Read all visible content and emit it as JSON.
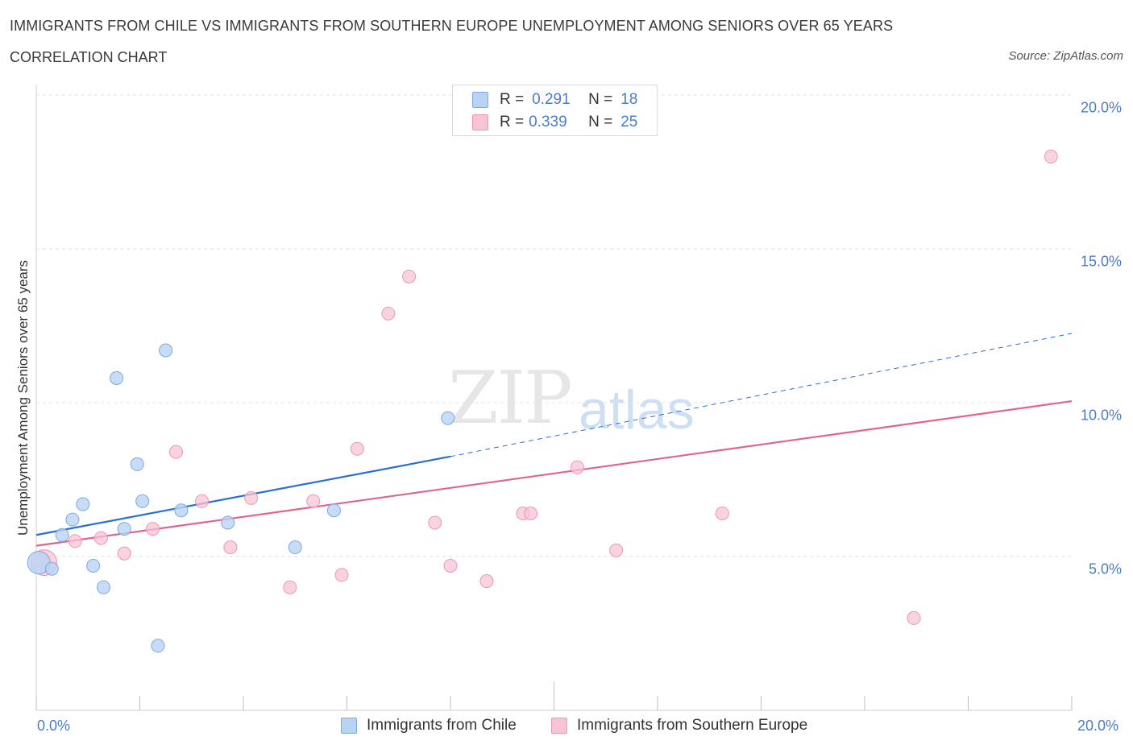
{
  "header": {
    "title": "IMMIGRANTS FROM CHILE VS IMMIGRANTS FROM SOUTHERN EUROPE UNEMPLOYMENT AMONG SENIORS OVER 65 YEARS",
    "subtitle": "CORRELATION CHART",
    "source": "Source: ZipAtlas.com"
  },
  "watermark": {
    "zip": "ZIP",
    "atlas": "atlas"
  },
  "legend": {
    "chile": {
      "r_label": "R = ",
      "r_value": "0.291",
      "n_label": "N = ",
      "n_value": "18"
    },
    "southern_europe": {
      "r_label": "R = ",
      "r_value": "0.339",
      "n_label": "N = ",
      "n_value": "25"
    }
  },
  "colors": {
    "chile_fill": "#b9d3f5",
    "chile_stroke": "#7fa8e0",
    "chile_line": "#2a6fd1",
    "se_fill": "#f7c4d3",
    "se_stroke": "#ec97b2",
    "se_line": "#e0648f",
    "axis_text": "#4a7cc7",
    "grid": "#e3e3e3"
  },
  "chart_data": {
    "type": "scatter",
    "title": "IMMIGRANTS FROM CHILE VS IMMIGRANTS FROM SOUTHERN EUROPE UNEMPLOYMENT AMONG SENIORS OVER 65 YEARS",
    "xlabel": "",
    "ylabel": "Unemployment Among Seniors over 65 years",
    "xlim": [
      0,
      20
    ],
    "ylim": [
      0,
      20
    ],
    "x_tick_labels": [
      "0.0%",
      "20.0%"
    ],
    "y_ticks": [
      5,
      10,
      15,
      20
    ],
    "y_tick_labels": [
      "5.0%",
      "10.0%",
      "15.0%",
      "20.0%"
    ],
    "series": [
      {
        "name": "Immigrants from Chile",
        "r": 0.291,
        "n": 18,
        "points": [
          [
            0.05,
            4.8
          ],
          [
            0.3,
            4.6
          ],
          [
            0.5,
            5.7
          ],
          [
            0.7,
            6.2
          ],
          [
            0.9,
            6.7
          ],
          [
            1.1,
            4.7
          ],
          [
            1.3,
            4.0
          ],
          [
            1.55,
            10.8
          ],
          [
            1.7,
            5.9
          ],
          [
            1.95,
            8.0
          ],
          [
            2.05,
            6.8
          ],
          [
            2.35,
            2.1
          ],
          [
            2.5,
            11.7
          ],
          [
            2.8,
            6.5
          ],
          [
            3.7,
            6.1
          ],
          [
            5.0,
            5.3
          ],
          [
            5.75,
            6.5
          ],
          [
            7.95,
            9.5
          ]
        ],
        "trend": {
          "x0": 0,
          "y0": 5.7,
          "x1": 8.0,
          "y1": 8.25,
          "dashed_to_x": 20,
          "dashed_to_y": 12.25
        }
      },
      {
        "name": "Immigrants from Southern Europe",
        "r": 0.339,
        "n": 25,
        "points": [
          [
            0.15,
            4.8
          ],
          [
            0.75,
            5.5
          ],
          [
            1.25,
            5.6
          ],
          [
            1.7,
            5.1
          ],
          [
            2.25,
            5.9
          ],
          [
            2.7,
            8.4
          ],
          [
            3.2,
            6.8
          ],
          [
            3.75,
            5.3
          ],
          [
            4.15,
            6.9
          ],
          [
            4.9,
            4.0
          ],
          [
            5.35,
            6.8
          ],
          [
            5.9,
            4.4
          ],
          [
            6.2,
            8.5
          ],
          [
            6.8,
            12.9
          ],
          [
            7.2,
            14.1
          ],
          [
            7.7,
            6.1
          ],
          [
            8.0,
            4.7
          ],
          [
            8.7,
            4.2
          ],
          [
            9.4,
            6.4
          ],
          [
            9.55,
            6.4
          ],
          [
            10.45,
            7.9
          ],
          [
            11.2,
            5.2
          ],
          [
            13.25,
            6.4
          ],
          [
            16.95,
            3.0
          ],
          [
            19.6,
            18.0
          ]
        ],
        "trend": {
          "x0": 0,
          "y0": 5.35,
          "x1": 20,
          "y1": 10.05
        }
      }
    ]
  },
  "bottom_legend": {
    "chile": "Immigrants from Chile",
    "southern_europe": "Immigrants from Southern Europe"
  }
}
